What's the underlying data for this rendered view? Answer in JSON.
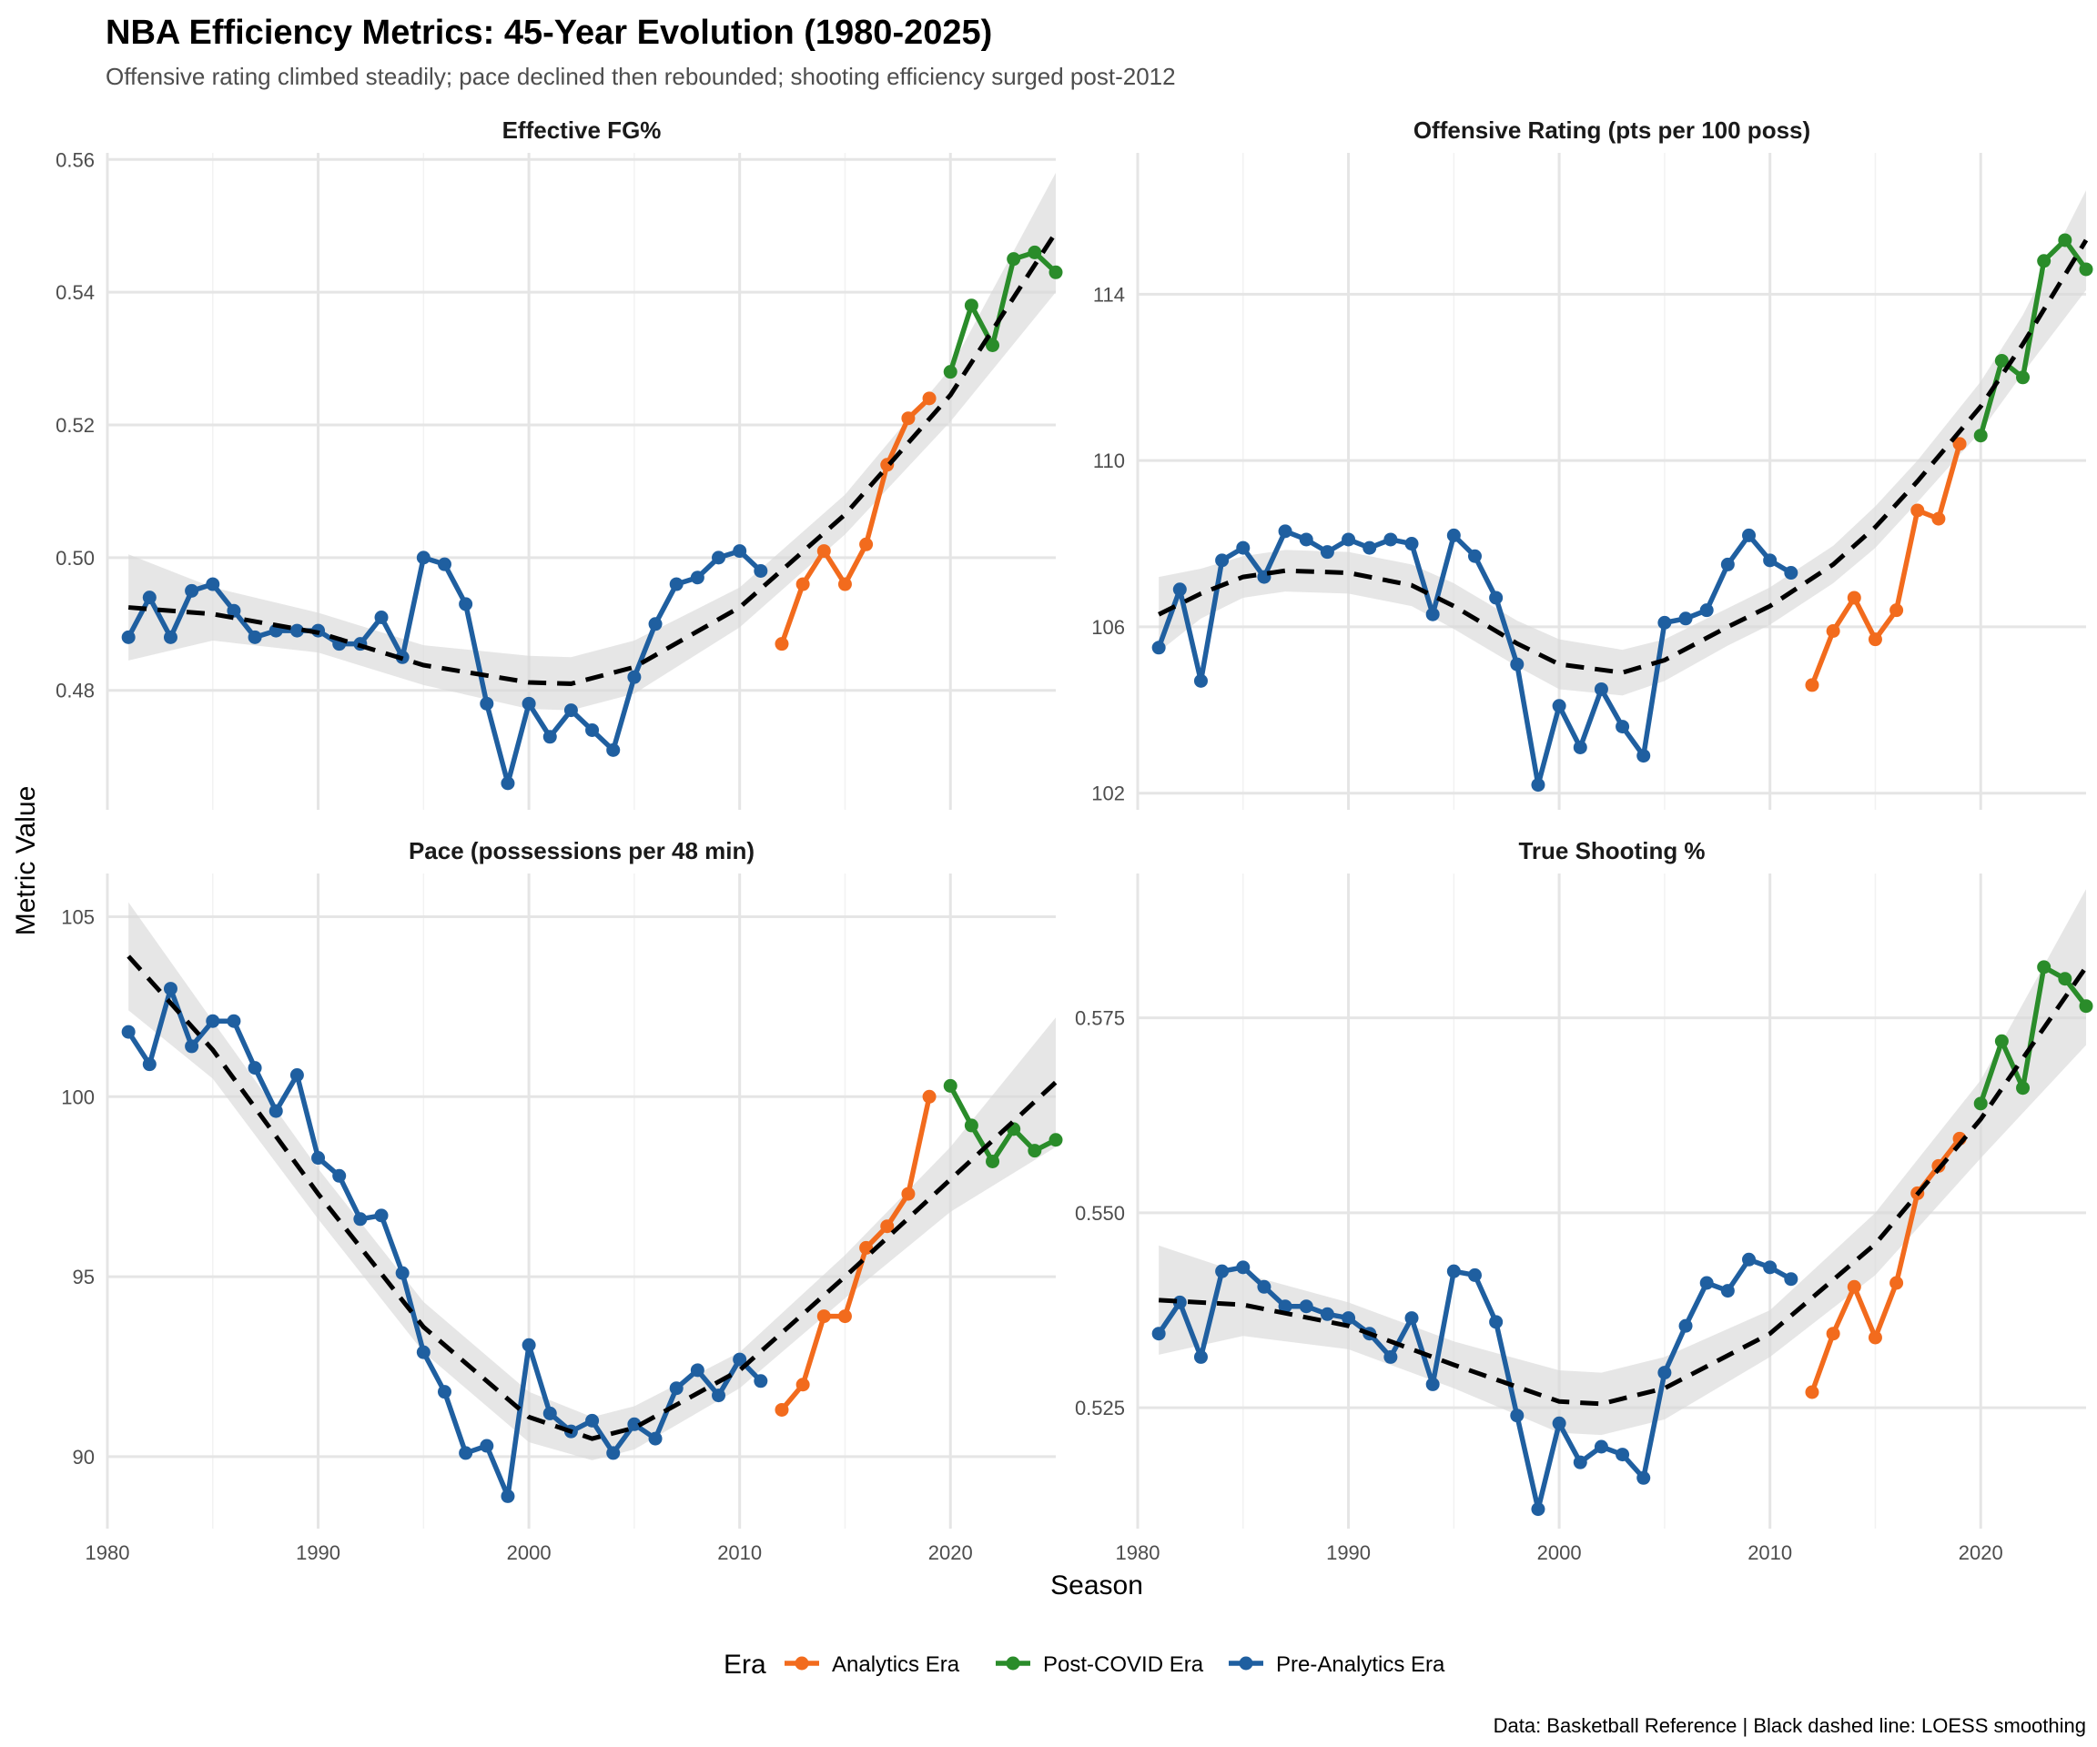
{
  "title": "NBA Efficiency Metrics: 45-Year Evolution (1980-2025)",
  "subtitle": "Offensive rating climbed steadily; pace declined then rebounded; shooting efficiency surged post-2012",
  "caption": "Data: Basketball Reference | Black dashed line: LOESS smoothing",
  "xlabel": "Season",
  "ylabel": "Metric Value",
  "legend": {
    "title": "Era",
    "position": "bottom",
    "items": [
      {
        "label": "Analytics Era",
        "color": "#F26B1D"
      },
      {
        "label": "Post-COVID Era",
        "color": "#2A8C2A"
      },
      {
        "label": "Pre-Analytics Era",
        "color": "#1F5FA0"
      }
    ]
  },
  "colors": {
    "pre": "#1F5FA0",
    "analytics": "#F26B1D",
    "post": "#2A8C2A",
    "trend": "#000000",
    "band": "#D9D9D9",
    "grid": "#E5E5E5"
  },
  "chart_data": [
    {
      "type": "line",
      "title": "Effective FG%",
      "xlim": [
        1980,
        2025
      ],
      "x_ticks": [
        1980,
        1990,
        2000,
        2010,
        2020
      ],
      "ylim": [
        0.462,
        0.561
      ],
      "y_ticks": [
        0.48,
        0.5,
        0.52,
        0.54,
        0.56
      ],
      "y_tick_labels": [
        "0.48",
        "0.50",
        "0.52",
        "0.54",
        "0.56"
      ],
      "grid": true,
      "series": [
        {
          "name": "Pre-Analytics Era",
          "x": [
            1981,
            1982,
            1983,
            1984,
            1985,
            1986,
            1987,
            1988,
            1989,
            1990,
            1991,
            1992,
            1993,
            1994,
            1995,
            1996,
            1997,
            1998,
            1999,
            2000,
            2001,
            2002,
            2003,
            2004,
            2005,
            2006,
            2007,
            2008,
            2009,
            2010,
            2011
          ],
          "y": [
            0.488,
            0.494,
            0.488,
            0.495,
            0.496,
            0.492,
            0.488,
            0.489,
            0.489,
            0.489,
            0.487,
            0.487,
            0.491,
            0.485,
            0.5,
            0.499,
            0.493,
            0.478,
            0.466,
            0.478,
            0.473,
            0.477,
            0.474,
            0.471,
            0.482,
            0.49,
            0.496,
            0.497,
            0.5,
            0.501,
            0.498
          ]
        },
        {
          "name": "Analytics Era",
          "x": [
            2012,
            2013,
            2014,
            2015,
            2016,
            2017,
            2018,
            2019
          ],
          "y": [
            0.487,
            0.496,
            0.501,
            0.496,
            0.502,
            0.514,
            0.521,
            0.524
          ]
        },
        {
          "name": "Post-COVID Era",
          "x": [
            2020,
            2021,
            2022,
            2023,
            2024,
            2025
          ],
          "y": [
            0.528,
            0.538,
            0.532,
            0.545,
            0.546,
            0.543
          ]
        }
      ],
      "trend": {
        "x": [
          1981,
          1985,
          1990,
          1995,
          2000,
          2002,
          2005,
          2010,
          2015,
          2020,
          2025
        ],
        "y": [
          0.4925,
          0.4915,
          0.4887,
          0.4838,
          0.4812,
          0.481,
          0.4835,
          0.4925,
          0.5065,
          0.5245,
          0.549
        ]
      },
      "band": [
        0.008,
        0.004,
        0.003,
        0.003,
        0.004,
        0.004,
        0.004,
        0.003,
        0.003,
        0.004,
        0.009
      ]
    },
    {
      "type": "line",
      "title": "Offensive Rating (pts per 100 poss)",
      "xlim": [
        1980,
        2025
      ],
      "x_ticks": [
        1980,
        1990,
        2000,
        2010,
        2020
      ],
      "ylim": [
        101.6,
        117.4
      ],
      "y_ticks": [
        102,
        106,
        110,
        114
      ],
      "y_tick_labels": [
        "102",
        "106",
        "110",
        "114"
      ],
      "grid": true,
      "series": [
        {
          "name": "Pre-Analytics Era",
          "x": [
            1981,
            1982,
            1983,
            1984,
            1985,
            1986,
            1987,
            1988,
            1989,
            1990,
            1991,
            1992,
            1993,
            1994,
            1995,
            1996,
            1997,
            1998,
            1999,
            2000,
            2001,
            2002,
            2003,
            2004,
            2005,
            2006,
            2007,
            2008,
            2009,
            2010,
            2011
          ],
          "y": [
            105.5,
            106.9,
            104.7,
            107.6,
            107.9,
            107.2,
            108.3,
            108.1,
            107.8,
            108.1,
            107.9,
            108.1,
            108.0,
            106.3,
            108.2,
            107.7,
            106.7,
            105.1,
            102.2,
            104.1,
            103.1,
            104.5,
            103.6,
            102.9,
            106.1,
            106.2,
            106.4,
            107.5,
            108.2,
            107.6,
            107.3
          ]
        },
        {
          "name": "Analytics Era",
          "x": [
            2012,
            2013,
            2014,
            2015,
            2016,
            2017,
            2018,
            2019
          ],
          "y": [
            104.6,
            105.9,
            106.7,
            105.7,
            106.4,
            108.8,
            108.6,
            110.4
          ]
        },
        {
          "name": "Post-COVID Era",
          "x": [
            2020,
            2021,
            2022,
            2023,
            2024,
            2025
          ],
          "y": [
            110.6,
            112.4,
            112.0,
            114.8,
            115.3,
            114.6
          ]
        }
      ],
      "trend": {
        "x": [
          1981,
          1983,
          1985,
          1987,
          1990,
          1993,
          1995,
          1998,
          2000,
          2003,
          2005,
          2008,
          2010,
          2013,
          2015,
          2017,
          2020,
          2022,
          2025
        ],
        "y": [
          106.3,
          106.8,
          107.2,
          107.35,
          107.3,
          107.0,
          106.5,
          105.6,
          105.1,
          104.9,
          105.2,
          106.0,
          106.5,
          107.5,
          108.4,
          109.5,
          111.3,
          112.8,
          115.3
        ]
      },
      "band": [
        0.9,
        0.6,
        0.5,
        0.5,
        0.5,
        0.5,
        0.55,
        0.55,
        0.6,
        0.55,
        0.5,
        0.45,
        0.45,
        0.45,
        0.5,
        0.5,
        0.6,
        0.7,
        1.2
      ]
    },
    {
      "type": "line",
      "title": "Pace (possessions per 48 min)",
      "xlim": [
        1980,
        2025
      ],
      "x_ticks": [
        1980,
        1990,
        2000,
        2010,
        2020
      ],
      "x_tick_labels": [
        "1980",
        "1990",
        "2000",
        "2010",
        "2020"
      ],
      "ylim": [
        88.0,
        106.2
      ],
      "y_ticks": [
        90,
        95,
        100,
        105
      ],
      "y_tick_labels": [
        "90",
        "95",
        "100",
        "105"
      ],
      "grid": true,
      "series": [
        {
          "name": "Pre-Analytics Era",
          "x": [
            1981,
            1982,
            1983,
            1984,
            1985,
            1986,
            1987,
            1988,
            1989,
            1990,
            1991,
            1992,
            1993,
            1994,
            1995,
            1996,
            1997,
            1998,
            1999,
            2000,
            2001,
            2002,
            2003,
            2004,
            2005,
            2006,
            2007,
            2008,
            2009,
            2010,
            2011
          ],
          "y": [
            101.8,
            100.9,
            103.0,
            101.4,
            102.1,
            102.1,
            100.8,
            99.6,
            100.6,
            98.3,
            97.8,
            96.6,
            96.7,
            95.1,
            92.9,
            91.8,
            90.1,
            90.3,
            88.9,
            93.1,
            91.2,
            90.7,
            91.0,
            90.1,
            90.9,
            90.5,
            91.9,
            92.4,
            91.7,
            92.7,
            92.1
          ]
        },
        {
          "name": "Analytics Era",
          "x": [
            2012,
            2013,
            2014,
            2015,
            2016,
            2017,
            2018,
            2019
          ],
          "y": [
            91.3,
            92.0,
            93.9,
            93.9,
            95.8,
            96.4,
            97.3,
            100.0
          ]
        },
        {
          "name": "Post-COVID Era",
          "x": [
            2020,
            2021,
            2022,
            2023,
            2024,
            2025
          ],
          "y": [
            100.3,
            99.2,
            98.2,
            99.1,
            98.5,
            98.8
          ]
        }
      ],
      "trend": {
        "x": [
          1981,
          1985,
          1990,
          1995,
          2000,
          2003,
          2005,
          2010,
          2015,
          2020,
          2025
        ],
        "y": [
          103.9,
          101.3,
          97.3,
          93.6,
          91.1,
          90.5,
          90.8,
          92.4,
          95.0,
          97.7,
          100.4
        ]
      },
      "band": [
        1.5,
        0.8,
        0.7,
        0.7,
        0.7,
        0.6,
        0.6,
        0.5,
        0.6,
        0.9,
        1.8
      ]
    },
    {
      "type": "line",
      "title": "True Shooting %",
      "xlim": [
        1980,
        2025
      ],
      "x_ticks": [
        1980,
        1990,
        2000,
        2010,
        2020
      ],
      "x_tick_labels": [
        "1980",
        "1990",
        "2000",
        "2010",
        "2020"
      ],
      "ylim": [
        0.5095,
        0.5935
      ],
      "y_ticks": [
        0.525,
        0.55,
        0.575
      ],
      "y_tick_labels": [
        "0.525",
        "0.550",
        "0.575"
      ],
      "grid": true,
      "series": [
        {
          "name": "Pre-Analytics Era",
          "x": [
            1981,
            1982,
            1983,
            1984,
            1985,
            1986,
            1987,
            1988,
            1989,
            1990,
            1991,
            1992,
            1993,
            1994,
            1995,
            1996,
            1997,
            1998,
            1999,
            2000,
            2001,
            2002,
            2003,
            2004,
            2005,
            2006,
            2007,
            2008,
            2009,
            2010,
            2011
          ],
          "y": [
            0.5345,
            0.5385,
            0.5315,
            0.5425,
            0.543,
            0.5405,
            0.538,
            0.538,
            0.537,
            0.5365,
            0.5345,
            0.5315,
            0.5365,
            0.528,
            0.5425,
            0.542,
            0.536,
            0.524,
            0.512,
            0.523,
            0.518,
            0.52,
            0.519,
            0.516,
            0.5295,
            0.5355,
            0.541,
            0.54,
            0.544,
            0.543,
            0.5415
          ]
        },
        {
          "name": "Analytics Era",
          "x": [
            2012,
            2013,
            2014,
            2015,
            2016,
            2017,
            2018,
            2019
          ],
          "y": [
            0.527,
            0.5345,
            0.5405,
            0.534,
            0.541,
            0.5525,
            0.556,
            0.5595
          ]
        },
        {
          "name": "Post-COVID Era",
          "x": [
            2020,
            2021,
            2022,
            2023,
            2024,
            2025
          ],
          "y": [
            0.564,
            0.572,
            0.566,
            0.5815,
            0.58,
            0.5765
          ]
        }
      ],
      "trend": {
        "x": [
          1981,
          1985,
          1990,
          1995,
          2000,
          2002,
          2005,
          2010,
          2015,
          2020,
          2025
        ],
        "y": [
          0.5388,
          0.5382,
          0.5355,
          0.5305,
          0.5258,
          0.5255,
          0.5275,
          0.5345,
          0.546,
          0.562,
          0.5815
        ]
      },
      "band": [
        0.007,
        0.004,
        0.003,
        0.003,
        0.004,
        0.004,
        0.004,
        0.003,
        0.004,
        0.005,
        0.01
      ]
    }
  ]
}
